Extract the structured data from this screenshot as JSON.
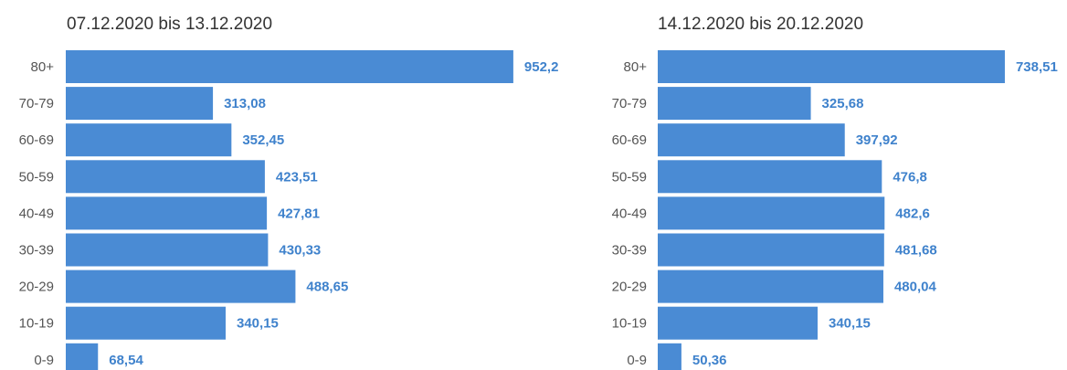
{
  "chart_data": [
    {
      "type": "bar",
      "orientation": "horizontal",
      "subtitle": "07.12.2020 bis 13.12.2020",
      "categories": [
        "80+",
        "70-79",
        "60-69",
        "50-59",
        "40-49",
        "30-39",
        "20-29",
        "10-19",
        "0-9"
      ],
      "values": [
        952.2,
        313.08,
        352.45,
        423.51,
        427.81,
        430.33,
        488.65,
        340.15,
        68.54
      ],
      "value_labels": [
        "952,2",
        "313,08",
        "352,45",
        "423,51",
        "427,81",
        "430,33",
        "488,65",
        "340,15",
        "68,54"
      ],
      "xlim": [
        0,
        1000
      ],
      "grid": false,
      "color": "#4a8bd4"
    },
    {
      "type": "bar",
      "orientation": "horizontal",
      "subtitle": "14.12.2020 bis 20.12.2020",
      "categories": [
        "80+",
        "70-79",
        "60-69",
        "50-59",
        "40-49",
        "30-39",
        "20-29",
        "10-19",
        "0-9"
      ],
      "values": [
        738.51,
        325.68,
        397.92,
        476.8,
        482.6,
        481.68,
        480.04,
        340.15,
        50.36
      ],
      "value_labels": [
        "738,51",
        "325,68",
        "397,92",
        "476,8",
        "482,6",
        "481,68",
        "480,04",
        "340,15",
        "50,36"
      ],
      "xlim": [
        0,
        1000
      ],
      "grid": false,
      "color": "#4a8bd4"
    }
  ],
  "colors": {
    "bar": "#4a8bd4",
    "value_label": "#3f82cc",
    "category_label": "#555555",
    "subtitle": "#333333"
  }
}
